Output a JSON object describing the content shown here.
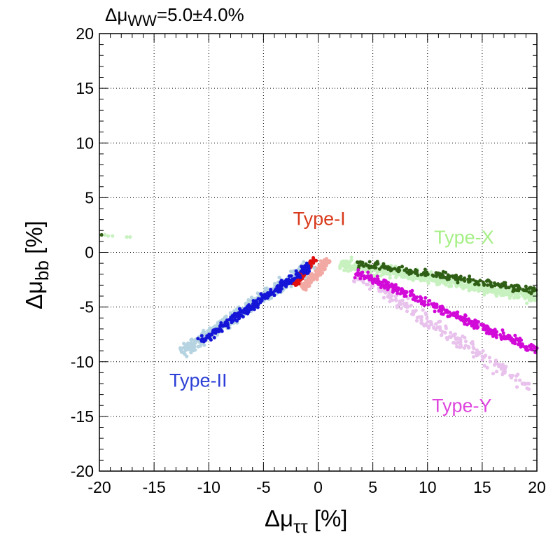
{
  "chart_data": {
    "type": "scatter",
    "title": {
      "prefix": "Δμ",
      "subscript": "WW",
      "suffix": "=5.0±4.0%"
    },
    "xlabel": {
      "base": "Δμ",
      "subscript": "ττ",
      "unit": " [%]"
    },
    "ylabel": {
      "base": "Δμ",
      "subscript": "bb",
      "unit": " [%]"
    },
    "xlim": [
      -20,
      20
    ],
    "ylim": [
      -20,
      20
    ],
    "x_ticks": [
      -20,
      -15,
      -10,
      -5,
      0,
      5,
      10,
      15,
      20
    ],
    "y_ticks": [
      -20,
      -15,
      -10,
      -5,
      0,
      5,
      10,
      15,
      20
    ],
    "x_tick_labels": [
      "-20",
      "-15",
      "-10",
      "-5",
      "0",
      "5",
      "10",
      "15",
      "20"
    ],
    "y_tick_labels": [
      "-20",
      "-15",
      "-10",
      "-5",
      "0",
      "5",
      "10",
      "15",
      "20"
    ],
    "grid": true,
    "series": [
      {
        "name": "Type-I",
        "label": "Type-I",
        "light_color": "#f2a9a3",
        "dark_color": "#e01010",
        "light_band": {
          "from": [
            -1.5,
            -3.2
          ],
          "to": [
            1.0,
            -0.7
          ],
          "width": 0.6,
          "count": 140
        },
        "dark_band": {
          "from": [
            -2.2,
            -3.0
          ],
          "to": [
            -0.3,
            -0.6
          ],
          "width": 0.35,
          "count": 110
        },
        "label_pos": [
          -2.3,
          2.5
        ]
      },
      {
        "name": "Type-II",
        "label": "Type-II",
        "light_color": "#b5d3e0",
        "dark_color": "#1515d8",
        "light_band": {
          "from": [
            -12.5,
            -9.2
          ],
          "to": [
            -0.5,
            -1.0
          ],
          "width": 0.75,
          "count": 450
        },
        "dark_band": {
          "from": [
            -10.8,
            -8.2
          ],
          "to": [
            -0.8,
            -1.3
          ],
          "width": 0.55,
          "count": 260
        },
        "label_pos": [
          -13.6,
          -12.3
        ]
      },
      {
        "name": "Type-X",
        "label": "Type-X",
        "light_color": "#c8f1c0",
        "dark_color": "#2f5f15",
        "light_band": {
          "from": [
            2.0,
            -1.0
          ],
          "to": [
            20.0,
            -4.1
          ],
          "width": 0.75,
          "count": 520
        },
        "dark_band": {
          "from": [
            3.5,
            -1.0
          ],
          "to": [
            20.0,
            -3.5
          ],
          "width": 0.5,
          "count": 200
        },
        "label_pos": [
          10.6,
          0.8
        ]
      },
      {
        "name": "Type-Y",
        "label": "Type-Y",
        "light_color": "#e8c2ec",
        "dark_color": "#d20ad8",
        "light_band": {
          "from": [
            3.5,
            -2.0
          ],
          "to": [
            19.5,
            -12.5
          ],
          "width": 0.9,
          "count": 220
        },
        "dark_band": {
          "from": [
            3.5,
            -1.8
          ],
          "to": [
            20.0,
            -9.0
          ],
          "width": 0.6,
          "count": 330
        },
        "label_pos": [
          10.4,
          -14.6
        ]
      }
    ],
    "outliers": [
      {
        "x": -19.8,
        "y": 1.6,
        "color": "#2f5f15"
      },
      {
        "x": -19.5,
        "y": 1.6,
        "color": "#c8f1c0"
      },
      {
        "x": -19.2,
        "y": 1.5,
        "color": "#c8f1c0"
      },
      {
        "x": -18.8,
        "y": 1.5,
        "color": "#c8f1c0"
      },
      {
        "x": -17.5,
        "y": 1.4,
        "color": "#c8f1c0"
      },
      {
        "x": -17.2,
        "y": 1.4,
        "color": "#c8f1c0"
      }
    ]
  }
}
